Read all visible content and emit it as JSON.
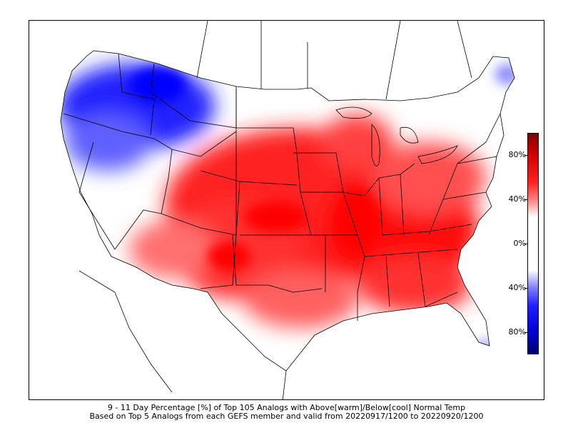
{
  "caption": {
    "line1": "9 - 11 Day Percentage [%] of Top 105 Analogs with Above[warm]/Below[cool] Normal Temp",
    "line2": "Based on Top 5 Analogs from each GEFS member and valid from 20220917/1200 to 20220920/1200"
  },
  "colorbar": {
    "labels": [
      "80%",
      "40%",
      "0%",
      "40%",
      "80%"
    ],
    "colors": {
      "warm_max": "#800000",
      "warm": "#ff0000",
      "neutral": "#ffffff",
      "cool": "#0000ff",
      "cool_max": "#00006a"
    }
  }
}
